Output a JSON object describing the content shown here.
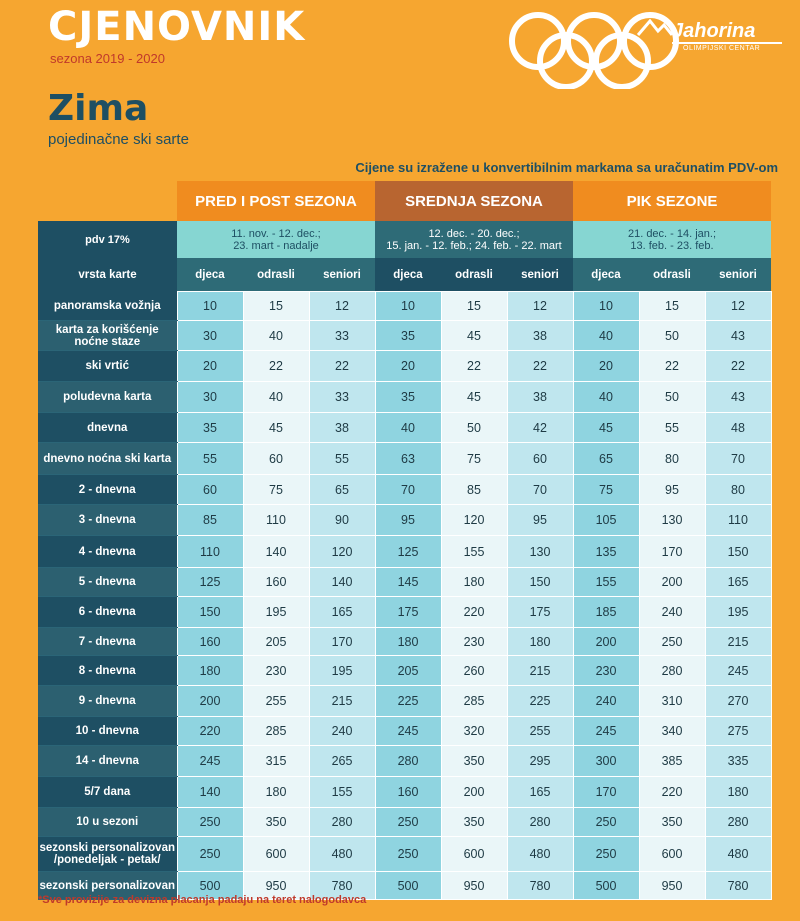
{
  "header": {
    "title": "CJENOVNIK",
    "season": "sezona 2019 - 2020",
    "heading": "Zima",
    "subheading": "pojedinačne ski sarte",
    "note": "Cijene su izražene u konvertibilnim markama sa uračunatim PDV-om"
  },
  "logo": {
    "name": "Jahorina",
    "tagline": "OLIMPIJSKI CENTAR"
  },
  "table": {
    "seasons": [
      {
        "name": "PRED I POST SEZONA",
        "dates_line1": "11. nov. - 12. dec.;",
        "dates_line2": "23. mart - nadalje"
      },
      {
        "name": "SREDNJA SEZONA",
        "dates_line1": "12. dec. - 20. dec.;",
        "dates_line2": "15. jan. - 12. feb.; 24. feb. - 22. mart"
      },
      {
        "name": "PIK SEZONE",
        "dates_line1": "21. dec. - 14. jan.;",
        "dates_line2": "13. feb. - 23. feb."
      }
    ],
    "pdv_label": "pdv 17%",
    "type_label": "vrsta karte",
    "columns": [
      "djeca",
      "odrasli",
      "seniori"
    ],
    "rows": [
      {
        "label": "panoramska vožnja",
        "v": [
          10,
          15,
          12,
          10,
          15,
          12,
          10,
          15,
          12
        ]
      },
      {
        "label": "karta za korišćenje noćne staze",
        "v": [
          30,
          40,
          33,
          35,
          45,
          38,
          40,
          50,
          43
        ]
      },
      {
        "label": "ski vrtić",
        "v": [
          20,
          22,
          22,
          20,
          22,
          22,
          20,
          22,
          22
        ]
      },
      {
        "label": "poludevna karta",
        "v": [
          30,
          40,
          33,
          35,
          45,
          38,
          40,
          50,
          43
        ]
      },
      {
        "label": "dnevna",
        "v": [
          35,
          45,
          38,
          40,
          50,
          42,
          45,
          55,
          48
        ]
      },
      {
        "label": "dnevno noćna ski karta",
        "v": [
          55,
          60,
          55,
          63,
          75,
          60,
          65,
          80,
          70
        ]
      },
      {
        "label": "2 - dnevna",
        "v": [
          60,
          75,
          65,
          70,
          85,
          70,
          75,
          95,
          80
        ]
      },
      {
        "label": "3 - dnevna",
        "v": [
          85,
          110,
          90,
          95,
          120,
          95,
          105,
          130,
          110
        ]
      },
      {
        "label": "4 - dnevna",
        "v": [
          110,
          140,
          120,
          125,
          155,
          130,
          135,
          170,
          150
        ]
      },
      {
        "label": "5 - dnevna",
        "v": [
          125,
          160,
          140,
          145,
          180,
          150,
          155,
          200,
          165
        ]
      },
      {
        "label": "6 - dnevna",
        "v": [
          150,
          195,
          165,
          175,
          220,
          175,
          185,
          240,
          195
        ]
      },
      {
        "label": "7 - dnevna",
        "v": [
          160,
          205,
          170,
          180,
          230,
          180,
          200,
          250,
          215
        ]
      },
      {
        "label": "8 - dnevna",
        "v": [
          180,
          230,
          195,
          205,
          260,
          215,
          230,
          280,
          245
        ]
      },
      {
        "label": "9 - dnevna",
        "v": [
          200,
          255,
          215,
          225,
          285,
          225,
          240,
          310,
          270
        ]
      },
      {
        "label": "10 - dnevna",
        "v": [
          220,
          285,
          240,
          245,
          320,
          255,
          245,
          340,
          275
        ]
      },
      {
        "label": "14 - dnevna",
        "v": [
          245,
          315,
          265,
          280,
          350,
          295,
          300,
          385,
          335
        ]
      },
      {
        "label": "5/7 dana",
        "v": [
          140,
          180,
          155,
          160,
          200,
          165,
          170,
          220,
          180
        ]
      },
      {
        "label": "10  u sezoni",
        "v": [
          250,
          350,
          280,
          250,
          350,
          280,
          250,
          350,
          280
        ]
      },
      {
        "label": "sezonski personalizovan /ponedeljak - petak/",
        "v": [
          250,
          600,
          480,
          250,
          600,
          480,
          250,
          600,
          480
        ]
      },
      {
        "label": "sezonski personalizovan",
        "v": [
          500,
          950,
          780,
          500,
          950,
          780,
          500,
          950,
          780
        ]
      }
    ]
  },
  "footnote": "*Sve provizije za devizna placanja padaju na teret nalogodavca"
}
